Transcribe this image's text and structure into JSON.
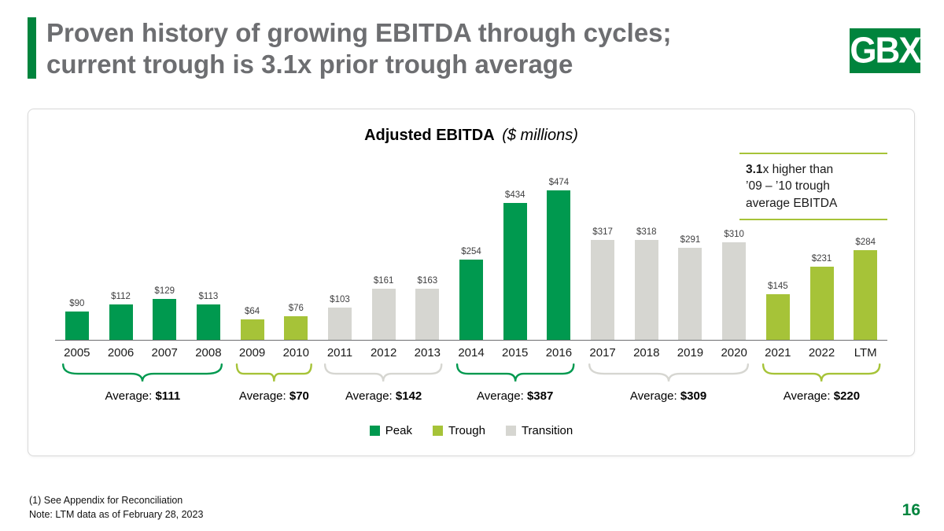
{
  "slide": {
    "title_line1": "Proven history of growing EBITDA through cycles;",
    "title_line2": "current trough is 3.1x prior trough average",
    "logo_text": "GBX",
    "page_number": "16",
    "footnotes": [
      "(1)  See Appendix for Reconciliation",
      "Note: LTM data as of February 28, 2023"
    ]
  },
  "chart_data": {
    "type": "bar",
    "title": "Adjusted EBITDA",
    "title_suffix": "($ millions)",
    "categories": [
      "2005",
      "2006",
      "2007",
      "2008",
      "2009",
      "2010",
      "2011",
      "2012",
      "2013",
      "2014",
      "2015",
      "2016",
      "2017",
      "2018",
      "2019",
      "2020",
      "2021",
      "2022",
      "LTM"
    ],
    "values": [
      90,
      112,
      129,
      113,
      64,
      76,
      103,
      161,
      163,
      254,
      434,
      474,
      317,
      318,
      291,
      310,
      145,
      231,
      284
    ],
    "labels": [
      "$90",
      "$112",
      "$129",
      "$113",
      "$64",
      "$76",
      "$103",
      "$161",
      "$163",
      "$254",
      "$434",
      "$474",
      "$317",
      "$318",
      "$291",
      "$310",
      "$145",
      "$231",
      "$284"
    ],
    "phases": [
      "peak",
      "peak",
      "peak",
      "peak",
      "trough",
      "trough",
      "transition",
      "transition",
      "transition",
      "peak",
      "peak",
      "peak",
      "transition",
      "transition",
      "transition",
      "transition",
      "trough",
      "trough",
      "trough"
    ],
    "ylim": [
      0,
      500
    ],
    "grid": false,
    "legend_position": "bottom",
    "groups": [
      {
        "label": "Average:",
        "value": "$111",
        "phase": "peak",
        "start": 0,
        "end": 3
      },
      {
        "label": "Average:",
        "value": "$70",
        "phase": "trough",
        "start": 4,
        "end": 5
      },
      {
        "label": "Average:",
        "value": "$142",
        "phase": "transition",
        "start": 6,
        "end": 8
      },
      {
        "label": "Average:",
        "value": "$387",
        "phase": "peak",
        "start": 9,
        "end": 11
      },
      {
        "label": "Average:",
        "value": "$309",
        "phase": "transition",
        "start": 12,
        "end": 15
      },
      {
        "label": "Average:",
        "value": "$220",
        "phase": "trough",
        "start": 16,
        "end": 18
      }
    ],
    "legend": [
      {
        "label": "Peak",
        "phase": "peak"
      },
      {
        "label": "Trough",
        "phase": "trough"
      },
      {
        "label": "Transition",
        "phase": "transition"
      }
    ],
    "annotation": {
      "bold": "3.1",
      "line1_rest": "x higher than",
      "line2": "’09 – ’10 trough",
      "line3": "average EBITDA"
    },
    "colors": {
      "peak": "#00994F",
      "trough": "#A6C338",
      "transition": "#D6D6D1",
      "accent": "#00843D",
      "axis": "#6D6E71"
    }
  }
}
